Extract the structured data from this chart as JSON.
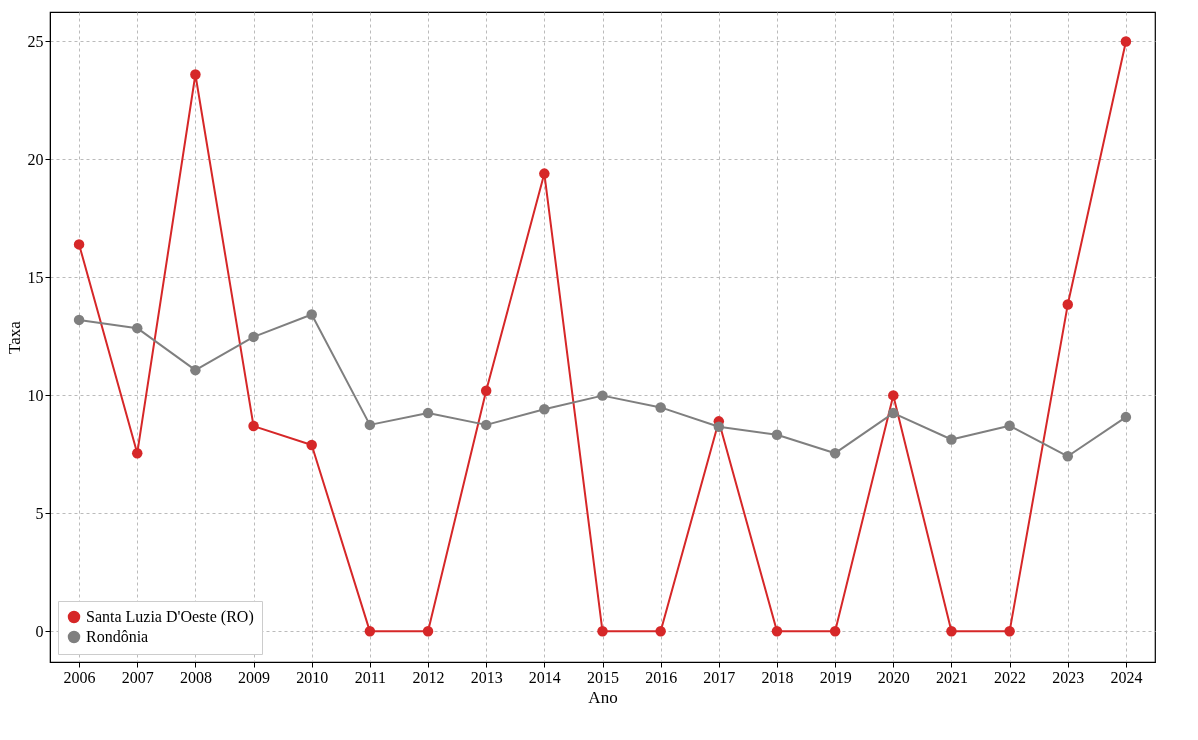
{
  "chart_data": {
    "type": "line",
    "xlabel": "Ano",
    "ylabel": "Taxa",
    "categories": [
      "2006",
      "2007",
      "2008",
      "2009",
      "2010",
      "2011",
      "2012",
      "2013",
      "2014",
      "2015",
      "2016",
      "2017",
      "2018",
      "2019",
      "2020",
      "2021",
      "2022",
      "2023",
      "2024"
    ],
    "series": [
      {
        "name": "Santa Luzia D'Oeste (RO)",
        "color": "#d62728",
        "values": [
          16.4,
          7.55,
          23.6,
          8.7,
          7.9,
          0,
          0,
          10.2,
          19.4,
          0,
          0,
          8.9,
          0,
          0,
          10.0,
          0,
          0,
          13.85,
          25.0
        ]
      },
      {
        "name": "Rondônia",
        "color": "#7f7f7f",
        "values": [
          13.2,
          12.85,
          11.07,
          12.48,
          13.43,
          8.75,
          9.25,
          8.75,
          9.41,
          9.99,
          9.49,
          8.67,
          8.33,
          7.55,
          9.25,
          8.13,
          8.71,
          7.42,
          9.08
        ]
      }
    ],
    "ylim": [
      -1.3,
      26.25
    ],
    "yticks": [
      0,
      5,
      10,
      15,
      20,
      25
    ],
    "grid": true,
    "legend": "bottom left",
    "marker": "circle",
    "line_style": "solid"
  }
}
